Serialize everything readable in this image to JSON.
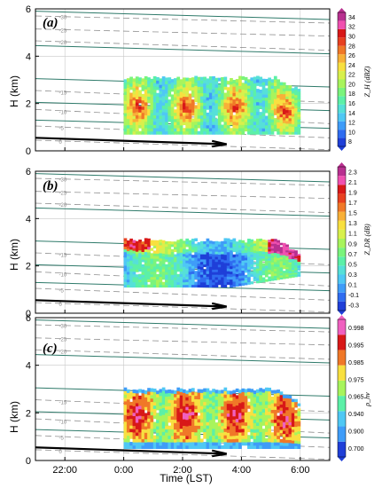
{
  "chart_data": [
    {
      "type": "heatmap",
      "panel_label": "(a)",
      "ylabel": "H (km)",
      "xlabel": "",
      "ylim": [
        0,
        6
      ],
      "xlim_hours_lst": [
        21,
        31
      ],
      "yticks": [
        "0",
        "2",
        "4",
        "6"
      ],
      "xticks": [],
      "grid": true,
      "colorbar": {
        "title": "Z_H (dBZ)",
        "ticks": [
          "8",
          "10",
          "12",
          "14",
          "16",
          "18",
          "20",
          "22",
          "24",
          "26",
          "28",
          "30",
          "32",
          "34"
        ],
        "colors": [
          "#1f3fd8",
          "#2f6cf0",
          "#3f9cf8",
          "#4fc8f4",
          "#56e0d8",
          "#5cf0a8",
          "#7af47c",
          "#a8f45c",
          "#d8f04c",
          "#f8e040",
          "#f8b038",
          "#f07828",
          "#e84020",
          "#d81818",
          "#f050b0",
          "#b83090"
        ]
      },
      "isotherms_c": [
        "-30",
        "-25",
        "-20",
        "-15",
        "-10",
        "-5",
        "0"
      ],
      "echo_top_km": 3.1,
      "echo_base_km": 0.7,
      "echo_time_range": [
        0.0,
        6.0
      ],
      "cells": [
        {
          "t": 0.5,
          "z": 22
        },
        {
          "t": 1.2,
          "z": 19
        },
        {
          "t": 2.2,
          "z": 26
        },
        {
          "t": 3.4,
          "z": 23
        },
        {
          "t": 4.4,
          "z": 25
        },
        {
          "t": 5.3,
          "z": 18
        }
      ]
    },
    {
      "type": "heatmap",
      "panel_label": "(b)",
      "ylabel": "H (km)",
      "xlabel": "",
      "ylim": [
        0,
        6
      ],
      "xlim_hours_lst": [
        21,
        31
      ],
      "yticks": [
        "0",
        "2",
        "4",
        "6"
      ],
      "xticks": [],
      "grid": true,
      "colorbar": {
        "title": "Z_DR (dB)",
        "ticks": [
          "-0.3",
          "-0.1",
          "0.1",
          "0.3",
          "0.5",
          "0.7",
          "0.9",
          "1.1",
          "1.3",
          "1.5",
          "1.7",
          "1.9",
          "2.1",
          "2.3"
        ],
        "colors": [
          "#1f3fd8",
          "#2f6cf0",
          "#3f9cf8",
          "#4fc8f4",
          "#56e0d8",
          "#5cf0a8",
          "#7af47c",
          "#a8f45c",
          "#d8f04c",
          "#f8e040",
          "#f8b038",
          "#f07828",
          "#e84020",
          "#d81818",
          "#f050b0",
          "#b83090"
        ]
      },
      "isotherms_c": [
        "-30",
        "-25",
        "-20",
        "-15",
        "-10",
        "-5",
        "0"
      ],
      "echo_top_km": 3.1,
      "echo_base_km": 1.1,
      "echo_time_range": [
        0.0,
        6.0
      ]
    },
    {
      "type": "heatmap",
      "panel_label": "(c)",
      "ylabel": "H (km)",
      "xlabel": "Time (LST)",
      "ylim": [
        0,
        6
      ],
      "xlim_hours_lst": [
        21,
        31
      ],
      "yticks": [
        "0",
        "2",
        "4",
        "6"
      ],
      "xticks": [
        "22:00",
        "0:00",
        "2:00",
        "4:00",
        "6:00"
      ],
      "grid": true,
      "colorbar": {
        "title": "ρ_hv",
        "ticks": [
          "0.700",
          "0.900",
          "0.940",
          "0.965",
          "0.975",
          "0.985",
          "0.995",
          "0.998"
        ],
        "colors": [
          "#1f3fd8",
          "#3f9cf8",
          "#4fc8f4",
          "#5cf0a8",
          "#a8f45c",
          "#f8e040",
          "#f07828",
          "#d81818",
          "#f060c0"
        ]
      },
      "isotherms_c": [
        "-30",
        "-25",
        "-20",
        "-15",
        "-10",
        "-5",
        "0"
      ],
      "echo_top_km": 3.0,
      "echo_base_km": 0.5,
      "echo_time_range": [
        0.0,
        6.0
      ]
    }
  ]
}
